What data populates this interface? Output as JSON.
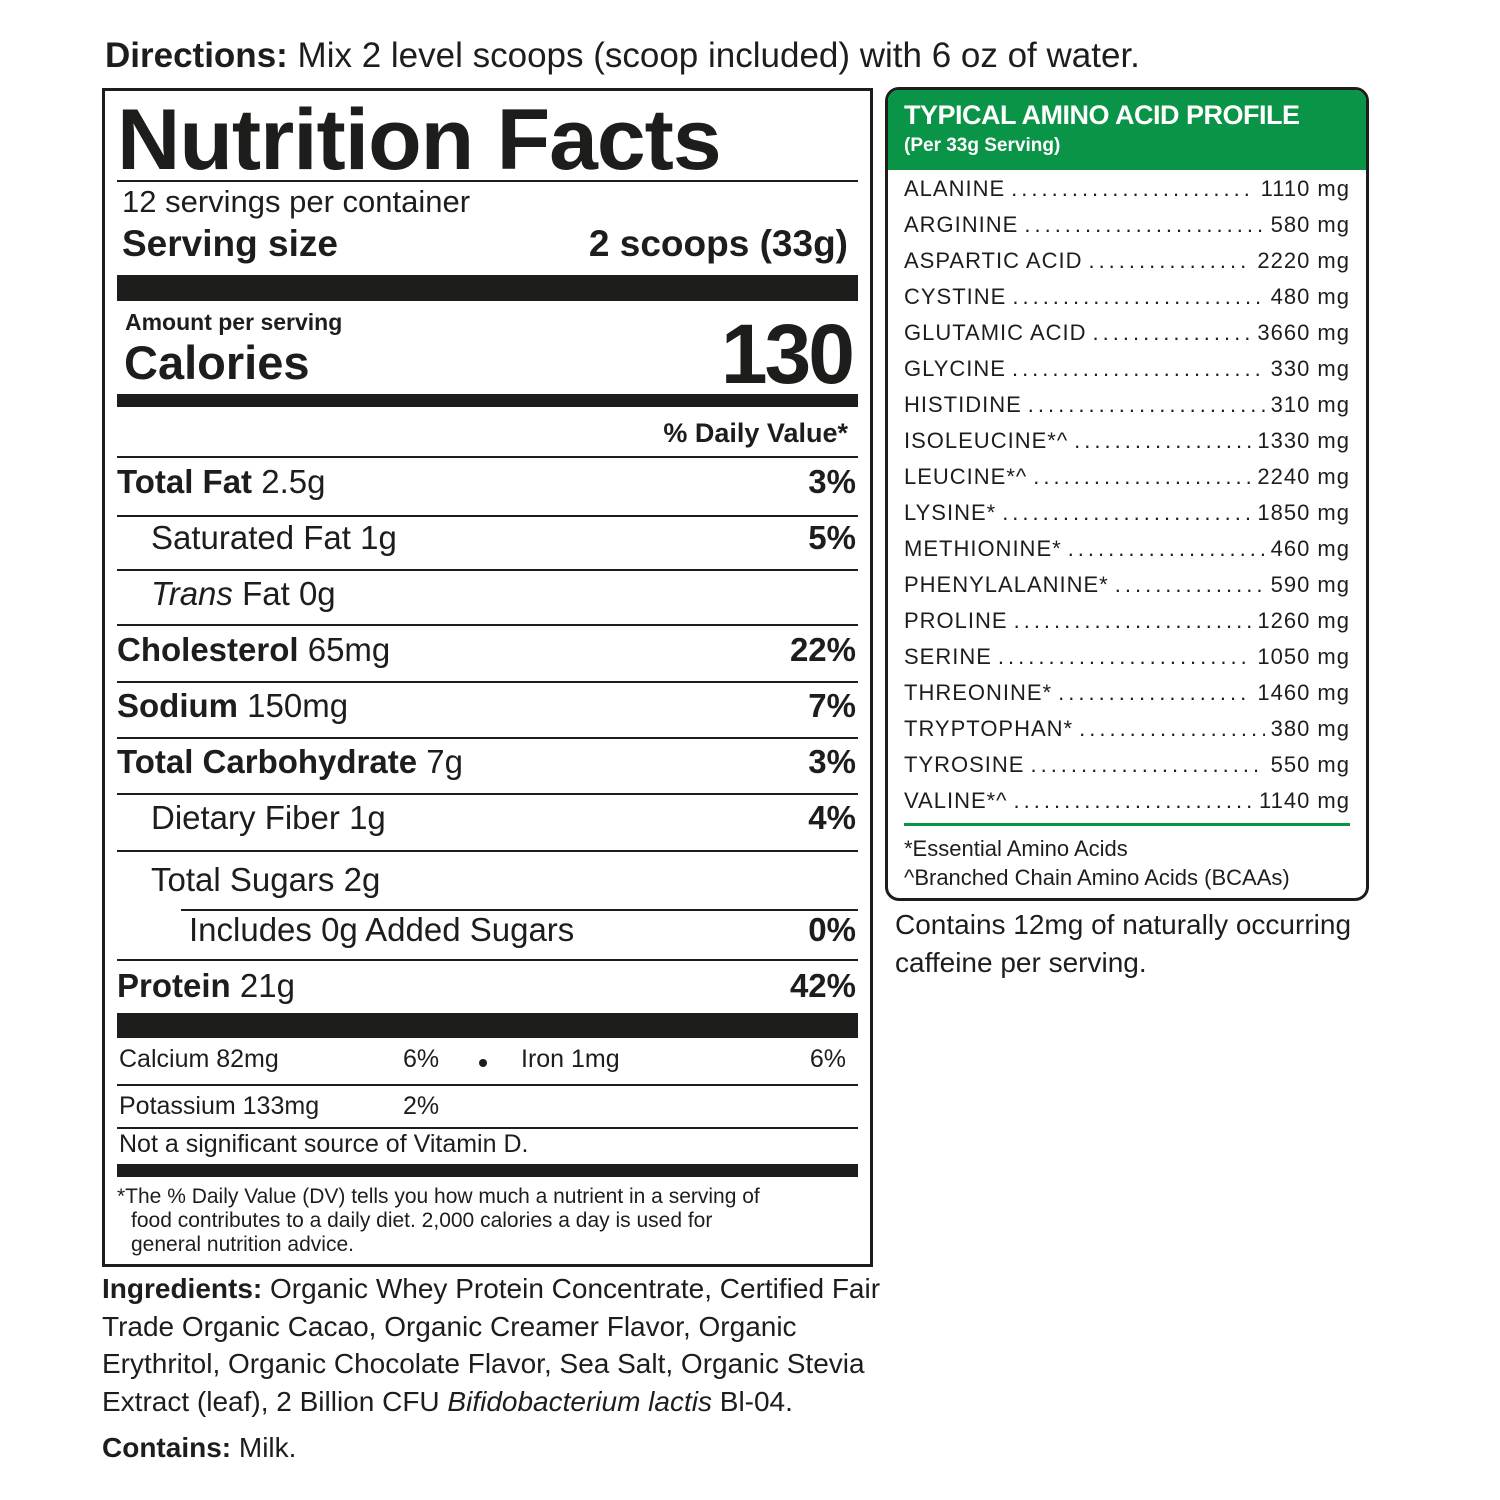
{
  "directions": {
    "label": "Directions:",
    "text": "Mix 2 level scoops (scoop included) with 6 oz of water."
  },
  "nutrition": {
    "title": "Nutrition Facts",
    "servings": "12 servings per container",
    "serving_size_label": "Serving size",
    "serving_size_value": "2 scoops (33g)",
    "amount_per_serving": "Amount per serving",
    "calories_label": "Calories",
    "calories_value": "130",
    "dv_header": "% Daily Value*",
    "rows": [
      {
        "name": "Total Fat",
        "amount": "2.5g",
        "dv": "3%"
      },
      {
        "name": "Saturated Fat",
        "amount": "1g",
        "dv": "5%"
      },
      {
        "name": "Trans",
        "name_suffix": "Fat",
        "amount": "0g",
        "dv": ""
      },
      {
        "name": "Cholesterol",
        "amount": "65mg",
        "dv": "22%"
      },
      {
        "name": "Sodium",
        "amount": "150mg",
        "dv": "7%"
      },
      {
        "name": "Total Carbohydrate",
        "amount": "7g",
        "dv": "3%"
      },
      {
        "name": "Dietary Fiber",
        "amount": "1g",
        "dv": "4%"
      },
      {
        "name": "Total Sugars",
        "amount": "2g",
        "dv": ""
      },
      {
        "name": "Includes 0g Added Sugars",
        "amount": "",
        "dv": "0%"
      },
      {
        "name": "Protein",
        "amount": "21g",
        "dv": "42%"
      }
    ],
    "minerals": {
      "calcium": "Calcium 82mg",
      "calcium_dv": "6%",
      "iron": "Iron 1mg",
      "iron_dv": "6%",
      "potassium": "Potassium 133mg",
      "potassium_dv": "2%",
      "vitamin_d": "Not a significant source of Vitamin D."
    },
    "footnote": [
      "*The % Daily Value (DV) tells you how much a nutrient in a serving of",
      "food contributes to a daily diet. 2,000 calories a day is used for",
      "general nutrition advice."
    ]
  },
  "amino": {
    "title": "TYPICAL AMINO ACID PROFILE",
    "subtitle": "(Per 33g Serving)",
    "accent": "#0a9447",
    "items": [
      {
        "name": "ALANINE",
        "value": "1110 mg"
      },
      {
        "name": "ARGININE",
        "value": "580 mg"
      },
      {
        "name": "ASPARTIC ACID",
        "value": "2220 mg"
      },
      {
        "name": "CYSTINE",
        "value": "480 mg"
      },
      {
        "name": "GLUTAMIC ACID",
        "value": "3660 mg"
      },
      {
        "name": "GLYCINE",
        "value": "330 mg"
      },
      {
        "name": "HISTIDINE",
        "value": "310 mg"
      },
      {
        "name": "ISOLEUCINE*^",
        "value": "1330 mg"
      },
      {
        "name": "LEUCINE*^",
        "value": "2240 mg"
      },
      {
        "name": "LYSINE*",
        "value": "1850 mg"
      },
      {
        "name": "METHIONINE*",
        "value": "460 mg"
      },
      {
        "name": "PHENYLALANINE*",
        "value": "590 mg"
      },
      {
        "name": "PROLINE",
        "value": "1260 mg"
      },
      {
        "name": "SERINE",
        "value": "1050 mg"
      },
      {
        "name": "THREONINE*",
        "value": "1460 mg"
      },
      {
        "name": "TRYPTOPHAN*",
        "value": "380 mg"
      },
      {
        "name": "TYROSINE",
        "value": "550 mg"
      },
      {
        "name": "VALINE*^",
        "value": "1140 mg"
      }
    ],
    "footnotes": [
      "*Essential Amino Acids",
      "^Branched Chain Amino Acids (BCAAs)"
    ]
  },
  "caffeine": "Contains 12mg of naturally occurring caffeine per serving.",
  "ingredients": {
    "label": "Ingredients:",
    "text": "Organic Whey Protein Concentrate, Certified Fair Trade Organic Cacao, Organic Creamer Flavor, Organic Erythritol, Organic Chocolate Flavor, Sea Salt, Organic Stevia Extract (leaf), 2 Billion CFU",
    "italic": "Bifidobacterium lactis",
    "end": "Bl-04."
  },
  "contains": {
    "label": "Contains:",
    "text": "Milk."
  }
}
